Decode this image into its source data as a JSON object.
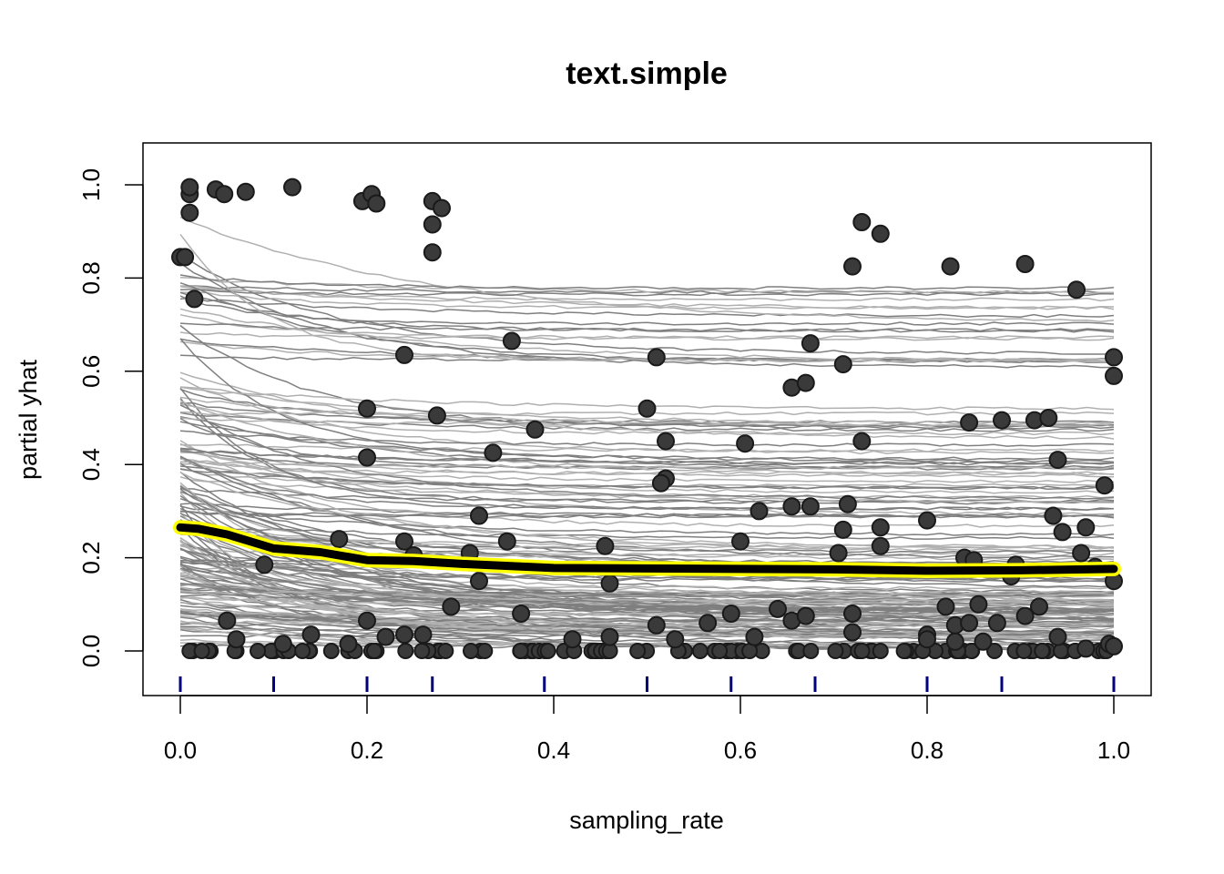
{
  "chart_data": {
    "type": "line",
    "title": "text.simple",
    "xlabel": "sampling_rate",
    "ylabel": "partial yhat",
    "xlim": [
      0,
      1
    ],
    "ylim": [
      -0.09,
      1.09
    ],
    "x_ticks": [
      {
        "value": 0.0,
        "label": "0.0"
      },
      {
        "value": 0.2,
        "label": "0.2"
      },
      {
        "value": 0.4,
        "label": "0.4"
      },
      {
        "value": 0.6,
        "label": "0.6"
      },
      {
        "value": 0.8,
        "label": "0.8"
      },
      {
        "value": 1.0,
        "label": "1.0"
      }
    ],
    "y_ticks": [
      {
        "value": 0.0,
        "label": "0.0"
      },
      {
        "value": 0.2,
        "label": "0.2"
      },
      {
        "value": 0.4,
        "label": "0.4"
      },
      {
        "value": 0.6,
        "label": "0.6"
      },
      {
        "value": 0.8,
        "label": "0.8"
      },
      {
        "value": 1.0,
        "label": "1.0"
      }
    ],
    "rug_x": [
      0.0,
      0.1,
      0.2,
      0.27,
      0.39,
      0.5,
      0.59,
      0.68,
      0.8,
      0.88,
      1.0
    ],
    "pdp": {
      "x": [
        0.0,
        0.02,
        0.05,
        0.1,
        0.15,
        0.2,
        0.25,
        0.3,
        0.4,
        0.5,
        0.6,
        0.7,
        0.8,
        0.9,
        1.0
      ],
      "y": [
        0.265,
        0.262,
        0.25,
        0.22,
        0.212,
        0.195,
        0.193,
        0.187,
        0.178,
        0.177,
        0.176,
        0.175,
        0.172,
        0.173,
        0.176
      ]
    },
    "points": [
      [
        0.0,
        0.845
      ],
      [
        0.005,
        0.845
      ],
      [
        0.01,
        0.98
      ],
      [
        0.01,
        0.995
      ],
      [
        0.01,
        0.94
      ],
      [
        0.015,
        0.755
      ],
      [
        0.038,
        0.99
      ],
      [
        0.047,
        0.98
      ],
      [
        0.07,
        0.985
      ],
      [
        0.12,
        0.995
      ],
      [
        0.195,
        0.965
      ],
      [
        0.205,
        0.98
      ],
      [
        0.21,
        0.96
      ],
      [
        0.27,
        0.965
      ],
      [
        0.27,
        0.915
      ],
      [
        0.27,
        0.855
      ],
      [
        0.28,
        0.95
      ],
      [
        0.24,
        0.635
      ],
      [
        0.355,
        0.665
      ],
      [
        0.2,
        0.52
      ],
      [
        0.2,
        0.415
      ],
      [
        0.275,
        0.505
      ],
      [
        0.38,
        0.475
      ],
      [
        0.335,
        0.425
      ],
      [
        0.51,
        0.63
      ],
      [
        0.5,
        0.52
      ],
      [
        0.52,
        0.45
      ],
      [
        0.52,
        0.37
      ],
      [
        0.515,
        0.36
      ],
      [
        0.605,
        0.445
      ],
      [
        0.675,
        0.66
      ],
      [
        0.71,
        0.615
      ],
      [
        0.73,
        0.92
      ],
      [
        0.75,
        0.895
      ],
      [
        0.72,
        0.825
      ],
      [
        0.825,
        0.825
      ],
      [
        0.905,
        0.83
      ],
      [
        0.96,
        0.775
      ],
      [
        1.0,
        0.63
      ],
      [
        1.0,
        0.59
      ],
      [
        0.655,
        0.565
      ],
      [
        0.67,
        0.575
      ],
      [
        0.73,
        0.45
      ],
      [
        0.845,
        0.49
      ],
      [
        0.88,
        0.495
      ],
      [
        0.915,
        0.495
      ],
      [
        0.93,
        0.5
      ],
      [
        0.94,
        0.41
      ],
      [
        0.99,
        0.355
      ],
      [
        0.09,
        0.185
      ],
      [
        0.17,
        0.24
      ],
      [
        0.24,
        0.235
      ],
      [
        0.25,
        0.205
      ],
      [
        0.32,
        0.29
      ],
      [
        0.31,
        0.21
      ],
      [
        0.35,
        0.235
      ],
      [
        0.32,
        0.15
      ],
      [
        0.455,
        0.225
      ],
      [
        0.46,
        0.145
      ],
      [
        0.62,
        0.3
      ],
      [
        0.6,
        0.235
      ],
      [
        0.655,
        0.31
      ],
      [
        0.675,
        0.31
      ],
      [
        0.715,
        0.315
      ],
      [
        0.71,
        0.26
      ],
      [
        0.705,
        0.21
      ],
      [
        0.75,
        0.265
      ],
      [
        0.75,
        0.225
      ],
      [
        0.8,
        0.28
      ],
      [
        0.84,
        0.2
      ],
      [
        0.85,
        0.195
      ],
      [
        0.935,
        0.29
      ],
      [
        0.945,
        0.255
      ],
      [
        0.97,
        0.265
      ],
      [
        0.965,
        0.21
      ],
      [
        0.98,
        0.18
      ],
      [
        1.0,
        0.15
      ],
      [
        0.895,
        0.185
      ],
      [
        0.89,
        0.16
      ],
      [
        0.05,
        0.065
      ],
      [
        0.06,
        0.025
      ],
      [
        0.11,
        0.015
      ],
      [
        0.14,
        0.035
      ],
      [
        0.18,
        0.015
      ],
      [
        0.2,
        0.065
      ],
      [
        0.22,
        0.03
      ],
      [
        0.24,
        0.035
      ],
      [
        0.26,
        0.035
      ],
      [
        0.29,
        0.095
      ],
      [
        0.365,
        0.08
      ],
      [
        0.42,
        0.025
      ],
      [
        0.46,
        0.03
      ],
      [
        0.51,
        0.055
      ],
      [
        0.53,
        0.025
      ],
      [
        0.565,
        0.06
      ],
      [
        0.59,
        0.08
      ],
      [
        0.615,
        0.03
      ],
      [
        0.64,
        0.09
      ],
      [
        0.655,
        0.065
      ],
      [
        0.67,
        0.075
      ],
      [
        0.72,
        0.08
      ],
      [
        0.72,
        0.04
      ],
      [
        0.8,
        0.035
      ],
      [
        0.8,
        0.025
      ],
      [
        0.82,
        0.095
      ],
      [
        0.83,
        0.055
      ],
      [
        0.83,
        0.02
      ],
      [
        0.845,
        0.06
      ],
      [
        0.855,
        0.1
      ],
      [
        0.86,
        0.02
      ],
      [
        0.875,
        0.06
      ],
      [
        0.905,
        0.075
      ],
      [
        0.92,
        0.095
      ],
      [
        0.94,
        0.03
      ],
      [
        0.97,
        0.005
      ],
      [
        0.995,
        0.015
      ],
      [
        1.0,
        0.01
      ]
    ]
  }
}
